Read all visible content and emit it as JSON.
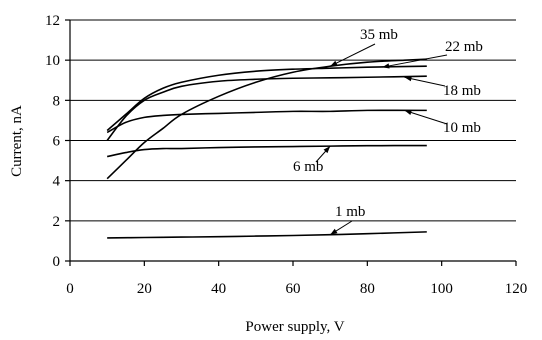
{
  "chart_data": {
    "type": "line",
    "xlabel": "Power supply, V",
    "ylabel": "Current, nA",
    "xlim": [
      0,
      120
    ],
    "ylim": [
      0,
      12
    ],
    "xticks": [
      "0",
      "20",
      "40",
      "60",
      "80",
      "100",
      "120"
    ],
    "yticks": [
      "0",
      "2",
      "4",
      "6",
      "8",
      "10",
      "12"
    ],
    "grid": "horizontal",
    "series": [
      {
        "name": "35 mb",
        "x": [
          10,
          15,
          20,
          25,
          30,
          40,
          50,
          60,
          70,
          80,
          90,
          96
        ],
        "y": [
          4.1,
          5.0,
          5.9,
          6.6,
          7.3,
          8.2,
          8.9,
          9.4,
          9.7,
          9.9,
          10.0,
          10.05
        ]
      },
      {
        "name": "22 mb",
        "x": [
          10,
          15,
          20,
          25,
          30,
          40,
          50,
          60,
          70,
          80,
          96
        ],
        "y": [
          6.5,
          7.3,
          8.1,
          8.6,
          8.9,
          9.25,
          9.45,
          9.55,
          9.6,
          9.65,
          9.7
        ]
      },
      {
        "name": "18 mb",
        "x": [
          10,
          15,
          20,
          25,
          30,
          40,
          50,
          60,
          70,
          80,
          96
        ],
        "y": [
          6.0,
          7.2,
          8.0,
          8.4,
          8.7,
          8.95,
          9.05,
          9.1,
          9.12,
          9.15,
          9.2
        ]
      },
      {
        "name": "10 mb",
        "x": [
          10,
          15,
          20,
          25,
          30,
          40,
          50,
          60,
          70,
          80,
          96
        ],
        "y": [
          6.4,
          6.9,
          7.15,
          7.25,
          7.3,
          7.35,
          7.4,
          7.45,
          7.45,
          7.5,
          7.5
        ]
      },
      {
        "name": "6 mb",
        "x": [
          10,
          15,
          20,
          25,
          30,
          40,
          50,
          60,
          70,
          80,
          96
        ],
        "y": [
          5.2,
          5.4,
          5.55,
          5.6,
          5.6,
          5.65,
          5.68,
          5.7,
          5.72,
          5.74,
          5.75
        ]
      },
      {
        "name": "1 mb",
        "x": [
          10,
          20,
          30,
          40,
          50,
          60,
          70,
          80,
          96
        ],
        "y": [
          1.15,
          1.17,
          1.19,
          1.21,
          1.24,
          1.27,
          1.31,
          1.36,
          1.45
        ]
      }
    ],
    "annotations": [
      {
        "text": "35 mb",
        "target": [
          70,
          9.7
        ]
      },
      {
        "text": "22 mb",
        "target": [
          84,
          9.65
        ]
      },
      {
        "text": "18 mb",
        "target": [
          90,
          9.15
        ]
      },
      {
        "text": "10 mb",
        "target": [
          90,
          7.5
        ]
      },
      {
        "text": "6 mb",
        "target": [
          70,
          5.72
        ]
      },
      {
        "text": "1 mb",
        "target": [
          70,
          1.31
        ]
      }
    ]
  }
}
